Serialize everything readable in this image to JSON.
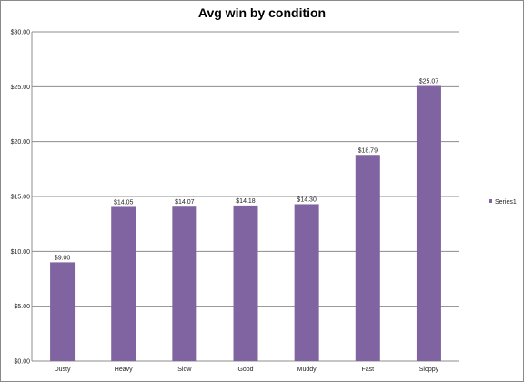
{
  "chart_data": {
    "type": "bar",
    "title": "Avg win by condition",
    "xlabel": "",
    "ylabel": "",
    "categories": [
      "Dusty",
      "Heavy",
      "Slow",
      "Good",
      "Muddy",
      "Fast",
      "Sloppy"
    ],
    "series": [
      {
        "name": "Series1",
        "values": [
          9.0,
          14.05,
          14.07,
          14.18,
          14.3,
          18.79,
          25.07
        ],
        "data_labels": [
          "$9.00",
          "$14.05",
          "$14.07",
          "$14.18",
          "$14.30",
          "$18.79",
          "$25.07"
        ],
        "color": "#8064a2"
      }
    ],
    "ylim": [
      0,
      30
    ],
    "yticks": [
      0,
      5,
      10,
      15,
      20,
      25,
      30
    ],
    "ytick_labels": [
      "$0.00",
      "$5.00",
      "$10.00",
      "$15.00",
      "$20.00",
      "$25.00",
      "$30.00"
    ],
    "grid": true,
    "legend_position": "right"
  }
}
